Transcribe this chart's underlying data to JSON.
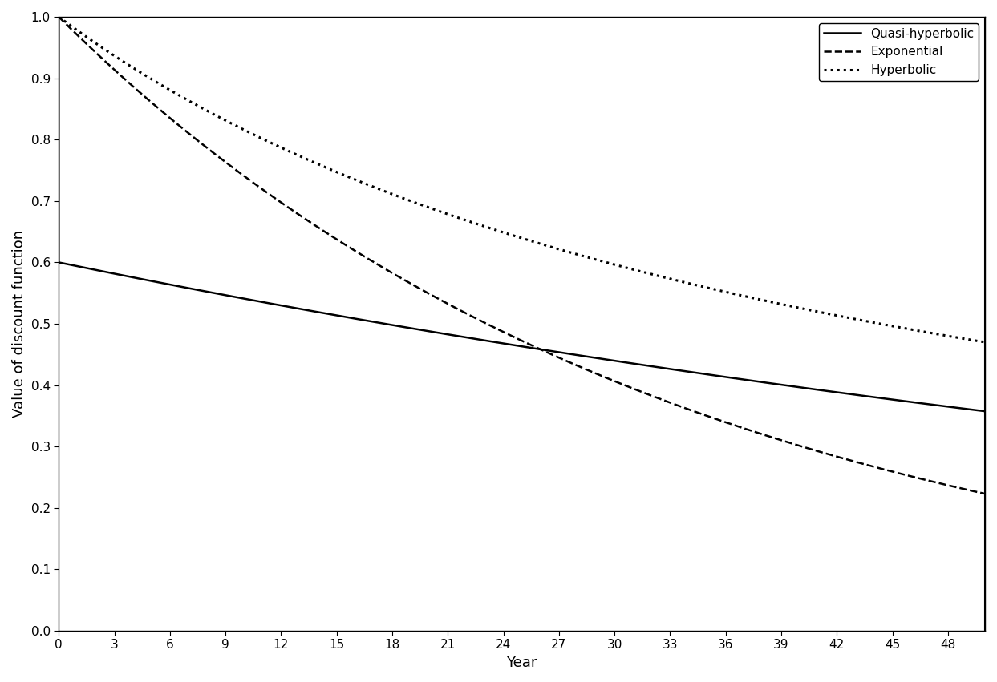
{
  "title": "",
  "xlabel": "Year",
  "ylabel": "Value of discount function",
  "xlim": [
    0,
    50
  ],
  "ylim": [
    0,
    1.0
  ],
  "xticks": [
    0,
    3,
    6,
    9,
    12,
    15,
    18,
    21,
    24,
    27,
    30,
    33,
    36,
    39,
    42,
    45,
    48
  ],
  "yticks": [
    0,
    0.1,
    0.2,
    0.3,
    0.4,
    0.5,
    0.6,
    0.7,
    0.8,
    0.9,
    1.0
  ],
  "quasi_hyperbolic": {
    "beta": 0.6,
    "delta": 0.9897,
    "label": "Quasi-hyperbolic",
    "linestyle": "-",
    "color": "#000000",
    "linewidth": 1.8
  },
  "exponential": {
    "r": 0.03,
    "label": "Exponential",
    "linestyle": "--",
    "color": "#000000",
    "linewidth": 1.8
  },
  "hyperbolic": {
    "k": 0.014,
    "label": "Hyperbolic",
    "linestyle": ":",
    "color": "#000000",
    "linewidth": 2.2
  },
  "legend_loc": "upper right",
  "background_color": "#ffffff",
  "spine_color": "#000000",
  "vline_x": 50
}
